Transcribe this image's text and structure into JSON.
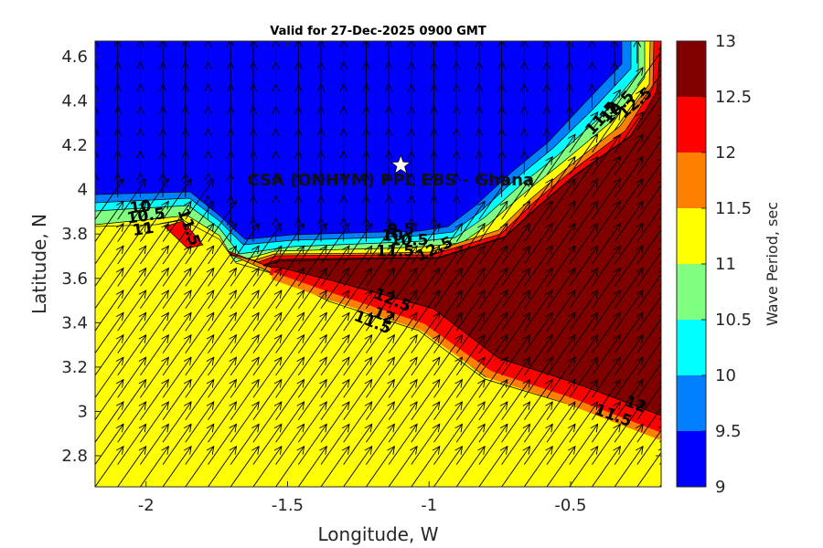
{
  "chart_data": {
    "type": "contour",
    "title": "Valid for 27-Dec-2025 0900 GMT",
    "xlabel": "Longitude, W",
    "ylabel": "Latitude, N",
    "xlim": [
      -2.18,
      -0.18
    ],
    "ylim": [
      2.66,
      4.67
    ],
    "xticks": [
      -2,
      -1.5,
      -1,
      -0.5
    ],
    "xtick_labels": [
      "-2",
      "-1.5",
      "-1",
      "-0.5"
    ],
    "yticks": [
      2.8,
      3,
      3.2,
      3.4,
      3.6,
      3.8,
      4,
      4.2,
      4.4,
      4.6
    ],
    "ytick_labels": [
      "2.8",
      "3",
      "3.2",
      "3.4",
      "3.6",
      "3.8",
      "4",
      "4.2",
      "4.4",
      "4.6"
    ],
    "colorbar": {
      "label": "Wave Period, sec",
      "levels": [
        9,
        9.5,
        10,
        10.5,
        11,
        11.5,
        12,
        12.5,
        13
      ],
      "level_labels": [
        "9",
        "9.5",
        "10",
        "10.5",
        "11",
        "11.5",
        "12",
        "12.5",
        "13"
      ],
      "colors": [
        "#0000ff",
        "#0080ff",
        "#00ffff",
        "#80ff80",
        "#ffff00",
        "#ff8000",
        "#ff0000",
        "#800000"
      ]
    },
    "regions": [
      {
        "name": "north",
        "value_range": [
          9,
          9.5
        ],
        "color": "#0000ff"
      },
      {
        "name": "south",
        "value_range": [
          11,
          11.5
        ],
        "color": "#ffff00"
      },
      {
        "name": "east",
        "value_range": [
          12.5,
          13
        ],
        "color": "#800000"
      }
    ],
    "contour_labels": [
      {
        "text": "10",
        "lon": -2.02,
        "lat": 3.92,
        "rot": -8
      },
      {
        "text": "10.5",
        "lon": -2.0,
        "lat": 3.88,
        "rot": -8
      },
      {
        "text": "11",
        "lon": -2.01,
        "lat": 3.82,
        "rot": -8
      },
      {
        "text": "11.5",
        "lon": -1.85,
        "lat": 3.83,
        "rot": 70
      },
      {
        "text": "9.5",
        "lon": -1.1,
        "lat": 3.82,
        "rot": 0
      },
      {
        "text": "10",
        "lon": -1.13,
        "lat": 3.79,
        "rot": 0
      },
      {
        "text": "10.5",
        "lon": -1.07,
        "lat": 3.77,
        "rot": 0
      },
      {
        "text": "11.5",
        "lon": -1.12,
        "lat": 3.72,
        "rot": 0
      },
      {
        "text": "12.5",
        "lon": -0.98,
        "lat": 3.73,
        "rot": -25
      },
      {
        "text": "12.5",
        "lon": -1.13,
        "lat": 3.5,
        "rot": 22
      },
      {
        "text": "11.5",
        "lon": -1.2,
        "lat": 3.4,
        "rot": 22
      },
      {
        "text": "12",
        "lon": -1.16,
        "lat": 3.43,
        "rot": 22
      },
      {
        "text": "10.5",
        "lon": -0.33,
        "lat": 4.37,
        "rot": -48
      },
      {
        "text": "11.5",
        "lon": -0.39,
        "lat": 4.32,
        "rot": -48
      },
      {
        "text": "12",
        "lon": -0.36,
        "lat": 4.35,
        "rot": -48
      },
      {
        "text": "12.5",
        "lon": -0.27,
        "lat": 4.39,
        "rot": -40
      },
      {
        "text": "12",
        "lon": -0.27,
        "lat": 3.03,
        "rot": 20
      },
      {
        "text": "11.5",
        "lon": -0.35,
        "lat": 2.98,
        "rot": 20
      }
    ],
    "site": {
      "label": "CSA (ONHYM) PPL EBS  - Ghana",
      "lon": -1.1,
      "lat": 4.11,
      "marker": "star",
      "marker_color": "#ffffff"
    },
    "vectors": {
      "type": "wave-direction-arrows",
      "north_direction_deg": 0,
      "south_direction_deg": 35
    }
  }
}
